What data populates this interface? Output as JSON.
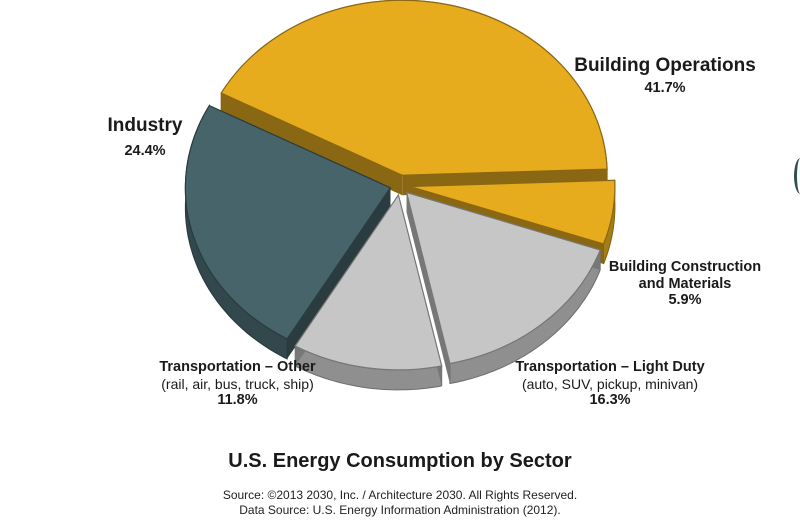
{
  "chart_data": {
    "type": "pie",
    "title": "U.S. Energy Consumption by Sector",
    "slices": [
      {
        "name": "Building Operations",
        "value": 41.7,
        "value_label": "41.7%",
        "detail": "",
        "color": "#E6AC1E"
      },
      {
        "name": "Building Construction and Materials",
        "value": 5.9,
        "value_label": "5.9%",
        "detail": "",
        "color": "#E6AC1E"
      },
      {
        "name": "Transportation – Light Duty",
        "value": 16.3,
        "value_label": "16.3%",
        "detail": "(auto, SUV, pickup, minivan)",
        "color": "#C6C6C6"
      },
      {
        "name": "Transportation – Other",
        "value": 11.8,
        "value_label": "11.8%",
        "detail": "(rail, air, bus, truck, ship)",
        "color": "#C6C6C6"
      },
      {
        "name": "Industry",
        "value": 24.4,
        "value_label": "24.4%",
        "detail": "",
        "color": "#46646A"
      }
    ]
  },
  "labels": {
    "building_ops_name": "Building Operations",
    "building_ops_value": "41.7%",
    "building_con_name_1": "Building Construction",
    "building_con_name_2": "and Materials",
    "building_con_value": "5.9%",
    "transport_ld_name": "Transportation – Light Duty",
    "transport_ld_detail": "(auto, SUV, pickup, minivan)",
    "transport_ld_value": "16.3%",
    "transport_other_name": "Transportation – Other",
    "transport_other_detail": "(rail, air, bus, truck, ship)",
    "transport_other_value": "11.8%",
    "industry_name": "Industry",
    "industry_value": "24.4%"
  },
  "source_line_1": "Source: ©2013 2030, Inc. / Architecture 2030. All Rights Reserved.",
  "source_line_2": "Data Source: U.S. Energy Information Administration (2012)."
}
